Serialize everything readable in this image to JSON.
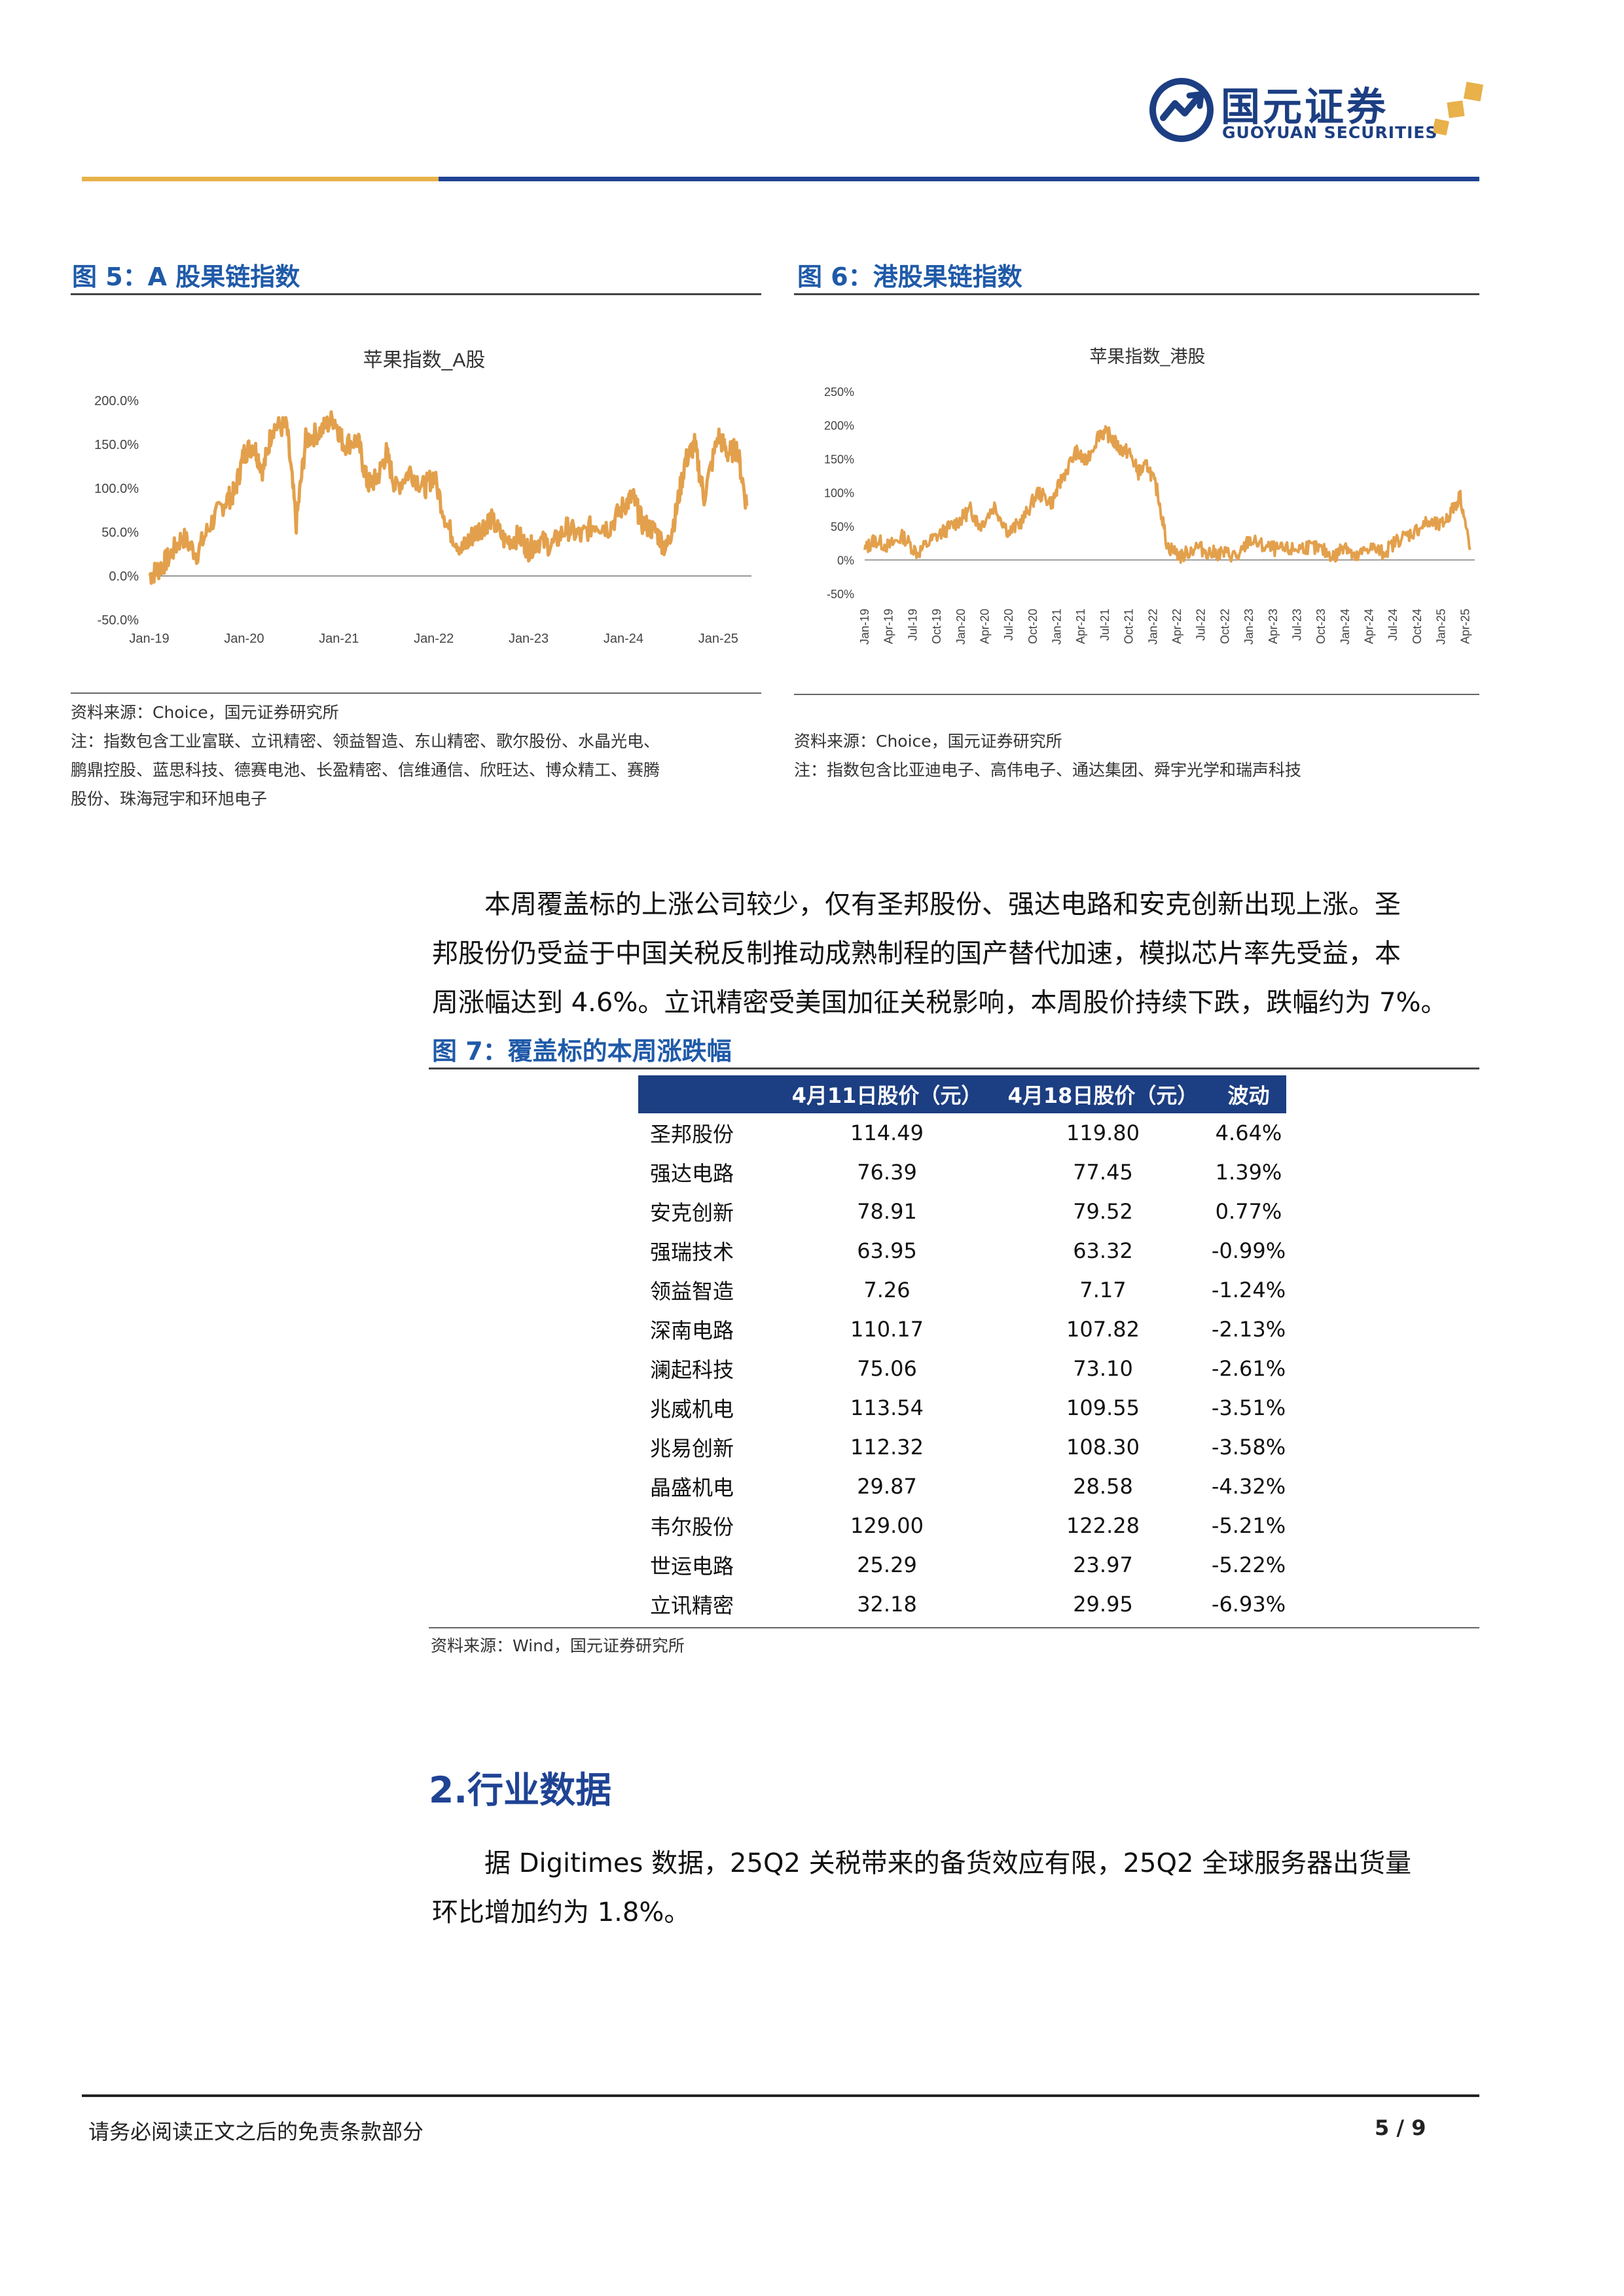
{
  "header": {
    "logo_cn": "国元证券",
    "logo_en": "GUOYUAN SECURITIES"
  },
  "colors": {
    "brand_blue": "#1c3e82",
    "accent_gold": "#e8b14a",
    "line_orange": "#e3a04c",
    "figure_title": "#1f5aa8"
  },
  "figure5": {
    "title": "图 5：A 股果链指数",
    "source": "资料来源：Choice，国元证券研究所",
    "note_lines": [
      "注：指数包含工业富联、立讯精密、领益智造、东山精密、歌尔股份、水晶光电、",
      "鹏鼎控股、蓝思科技、德赛电池、长盈精密、信维通信、欣旺达、博众精工、赛腾",
      "股份、珠海冠宇和环旭电子"
    ]
  },
  "figure6": {
    "title": "图 6：港股果链指数",
    "source": "资料来源：Choice，国元证券研究所",
    "note_lines": [
      "注：指数包含比亚迪电子、高伟电子、通达集团、舜宇光学和瑞声科技"
    ]
  },
  "chart_data": [
    {
      "type": "line",
      "title": "苹果指数_A股",
      "xlabel": "",
      "ylabel": "",
      "y_ticks": [
        "200.0%",
        "150.0%",
        "100.0%",
        "50.0%",
        "0.0%",
        "-50.0%"
      ],
      "x_ticks": [
        "Jan-19",
        "Jan-20",
        "Jan-21",
        "Jan-22",
        "Jan-23",
        "Jan-24",
        "Jan-25"
      ],
      "ylim": [
        -50,
        200
      ],
      "grid": false,
      "series": [
        {
          "x": [
            2019.0,
            2019.1,
            2019.2,
            2019.35,
            2019.5,
            2019.65,
            2019.8,
            2019.9,
            2020.0,
            2020.1,
            2020.2,
            2020.3,
            2020.45,
            2020.55,
            2020.65,
            2020.8,
            2020.95,
            2021.05,
            2021.2,
            2021.3,
            2021.4,
            2021.5,
            2021.6,
            2021.75,
            2021.9,
            2022.0,
            2022.15,
            2022.3,
            2022.4,
            2022.5,
            2022.6,
            2022.75,
            2022.9,
            2023.0,
            2023.1,
            2023.25,
            2023.4,
            2023.55,
            2023.7,
            2023.85,
            2024.0,
            2024.1,
            2024.2,
            2024.35,
            2024.45,
            2024.55,
            2024.65,
            2024.75,
            2024.85,
            2025.0,
            2025.1,
            2025.2,
            2025.3
          ],
          "y": [
            0,
            8,
            20,
            45,
            25,
            60,
            85,
            95,
            140,
            150,
            120,
            170,
            170,
            60,
            155,
            165,
            180,
            150,
            155,
            105,
            110,
            140,
            100,
            120,
            100,
            115,
            55,
            30,
            45,
            55,
            65,
            40,
            45,
            30,
            40,
            35,
            55,
            45,
            60,
            55,
            80,
            90,
            60,
            50,
            30,
            70,
            130,
            150,
            90,
            160,
            140,
            145,
            80
          ]
        }
      ]
    },
    {
      "type": "line",
      "title": "苹果指数_港股",
      "xlabel": "",
      "ylabel": "",
      "y_ticks": [
        "250%",
        "200%",
        "150%",
        "100%",
        "50%",
        "0%",
        "-50%"
      ],
      "x_ticks": [
        "Jan-19",
        "Apr-19",
        "Jul-19",
        "Oct-19",
        "Jan-20",
        "Apr-20",
        "Jul-20",
        "Oct-20",
        "Jan-21",
        "Apr-21",
        "Jul-21",
        "Oct-21",
        "Jan-22",
        "Apr-22",
        "Jul-22",
        "Oct-22",
        "Jan-23",
        "Apr-23",
        "Jul-23",
        "Oct-23",
        "Jan-24",
        "Apr-24",
        "Jul-24",
        "Oct-24",
        "Jan-25",
        "Apr-25"
      ],
      "ylim": [
        -50,
        250
      ],
      "grid": false,
      "series": [
        {
          "x": [
            2019.0,
            2019.1,
            2019.25,
            2019.4,
            2019.55,
            2019.7,
            2019.85,
            2020.0,
            2020.1,
            2020.2,
            2020.35,
            2020.5,
            2020.65,
            2020.8,
            2020.95,
            2021.05,
            2021.2,
            2021.3,
            2021.45,
            2021.55,
            2021.65,
            2021.75,
            2021.85,
            2021.95,
            2022.05,
            2022.15,
            2022.3,
            2022.45,
            2022.6,
            2022.75,
            2022.9,
            2023.0,
            2023.15,
            2023.3,
            2023.45,
            2023.6,
            2023.75,
            2023.9,
            2024.0,
            2024.1,
            2024.25,
            2024.4,
            2024.55,
            2024.7,
            2024.85,
            2025.0,
            2025.1,
            2025.2,
            2025.3
          ],
          "y": [
            15,
            30,
            20,
            35,
            10,
            30,
            45,
            60,
            75,
            50,
            80,
            40,
            60,
            100,
            85,
            120,
            160,
            145,
            190,
            185,
            165,
            160,
            130,
            140,
            100,
            20,
            5,
            20,
            10,
            10,
            5,
            30,
            20,
            15,
            15,
            20,
            15,
            5,
            25,
            0,
            20,
            10,
            30,
            40,
            55,
            50,
            70,
            95,
            15
          ]
        }
      ]
    }
  ],
  "paragraph1": {
    "lines": [
      "本周覆盖标的上涨公司较少，仅有圣邦股份、强达电路和安克创新出现上涨。圣",
      "邦股份仍受益于中国关税反制推动成熟制程的国产替代加速，模拟芯片率先受益，本",
      "周涨幅达到 4.6%。立讯精密受美国加征关税影响，本周股价持续下跌，跌幅约为 7%。"
    ]
  },
  "figure7": {
    "title": "图 7：覆盖标的本周涨跌幅",
    "headers": [
      "",
      "4月11日股价（元）",
      "4月18日股价（元）",
      "波动"
    ],
    "rows": [
      [
        "圣邦股份",
        "114.49",
        "119.80",
        "4.64%"
      ],
      [
        "强达电路",
        "76.39",
        "77.45",
        "1.39%"
      ],
      [
        "安克创新",
        "78.91",
        "79.52",
        "0.77%"
      ],
      [
        "强瑞技术",
        "63.95",
        "63.32",
        "-0.99%"
      ],
      [
        "领益智造",
        "7.26",
        "7.17",
        "-1.24%"
      ],
      [
        "深南电路",
        "110.17",
        "107.82",
        "-2.13%"
      ],
      [
        "澜起科技",
        "75.06",
        "73.10",
        "-2.61%"
      ],
      [
        "兆威机电",
        "113.54",
        "109.55",
        "-3.51%"
      ],
      [
        "兆易创新",
        "112.32",
        "108.30",
        "-3.58%"
      ],
      [
        "晶盛机电",
        "29.87",
        "28.58",
        "-4.32%"
      ],
      [
        "韦尔股份",
        "129.00",
        "122.28",
        "-5.21%"
      ],
      [
        "世运电路",
        "25.29",
        "23.97",
        "-5.22%"
      ],
      [
        "立讯精密",
        "32.18",
        "29.95",
        "-6.93%"
      ]
    ],
    "source": "资料来源：Wind，国元证券研究所"
  },
  "section2": {
    "title": "2.行业数据",
    "lines": [
      "据 Digitimes 数据，25Q2 关税带来的备货效应有限，25Q2 全球服务器出货量",
      "环比增加约为 1.8%。"
    ]
  },
  "footer": {
    "disclaimer": "请务必阅读正文之后的免责条款部分",
    "page": "5 / 9"
  }
}
